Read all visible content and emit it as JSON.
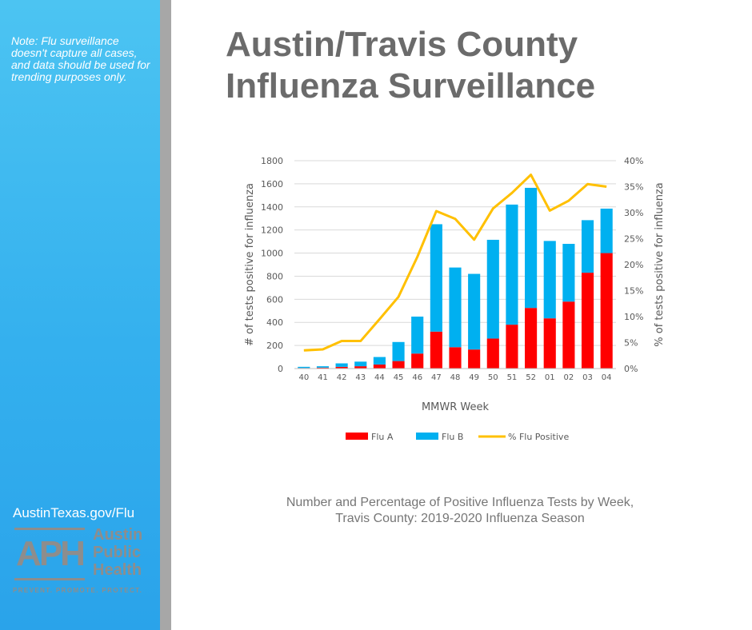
{
  "sidebar": {
    "note": "Note: Flu surveillance doesn't capture all cases, and data should be used for trending purposes only.",
    "link": "AustinTexas.gov/Flu",
    "logo": {
      "letters": "APH",
      "name_line1": "Austin",
      "name_line2": "Public",
      "name_line3": "Health",
      "tagline": "PREVENT. PROMOTE. PROTECT."
    }
  },
  "header": {
    "title_line1": "Austin/Travis County",
    "title_line2": "Influenza Surveillance"
  },
  "caption": {
    "line1": "Number and Percentage of Positive Influenza Tests by Week,",
    "line2": "Travis County: 2019-2020 Influenza Season"
  },
  "colors": {
    "flu_a": "#ff0000",
    "flu_b": "#00b0f0",
    "pct": "#ffc000",
    "grid": "#d9d9d9"
  },
  "chart_data": {
    "type": "bar",
    "stacked": true,
    "categories": [
      "40",
      "41",
      "42",
      "43",
      "44",
      "45",
      "46",
      "47",
      "48",
      "49",
      "50",
      "51",
      "52",
      "01",
      "02",
      "03",
      "04"
    ],
    "series": [
      {
        "name": "Flu A",
        "values": [
          5,
          8,
          15,
          20,
          35,
          65,
          130,
          320,
          185,
          165,
          260,
          380,
          525,
          435,
          580,
          830,
          1000
        ]
      },
      {
        "name": "Flu B",
        "values": [
          10,
          12,
          30,
          40,
          65,
          165,
          320,
          930,
          690,
          655,
          855,
          1040,
          1040,
          670,
          500,
          455,
          385
        ]
      }
    ],
    "line_series": {
      "name": "% Flu Positive",
      "axis": "right",
      "values": [
        3.5,
        3.7,
        5.3,
        5.3,
        9.5,
        13.8,
        21.5,
        30.3,
        28.8,
        24.8,
        30.8,
        33.8,
        37.3,
        30.4,
        32.3,
        35.5,
        35.0
      ]
    },
    "xlabel": "MMWR Week",
    "ylabel": "# of tests positive for influenza",
    "ylabel_right": "% of tests positive for influenza",
    "ylim": [
      0,
      1800
    ],
    "yticks": [
      0,
      200,
      400,
      600,
      800,
      1000,
      1200,
      1400,
      1600,
      1800
    ],
    "ylim_right": [
      0,
      40
    ],
    "yticks_right": [
      "0%",
      "5%",
      "10%",
      "15%",
      "20%",
      "25%",
      "30%",
      "35%",
      "40%"
    ],
    "legend": [
      "Flu A",
      "Flu B",
      "% Flu Positive"
    ],
    "legend_position": "bottom",
    "grid": true
  }
}
